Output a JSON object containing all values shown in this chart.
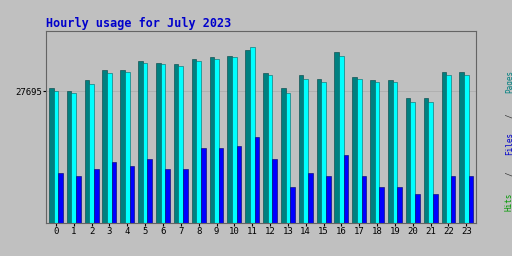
{
  "title": "Hourly usage for July 2023",
  "hours": [
    0,
    1,
    2,
    3,
    4,
    5,
    6,
    7,
    8,
    9,
    10,
    11,
    12,
    13,
    14,
    15,
    16,
    17,
    18,
    19,
    20,
    21,
    22,
    23
  ],
  "pages": [
    0.76,
    0.74,
    0.8,
    0.86,
    0.86,
    0.91,
    0.9,
    0.89,
    0.92,
    0.93,
    0.94,
    0.97,
    0.84,
    0.76,
    0.83,
    0.81,
    0.96,
    0.82,
    0.8,
    0.8,
    0.7,
    0.7,
    0.85,
    0.85
  ],
  "files": [
    0.74,
    0.73,
    0.78,
    0.84,
    0.85,
    0.9,
    0.89,
    0.88,
    0.91,
    0.92,
    0.93,
    0.99,
    0.83,
    0.73,
    0.81,
    0.79,
    0.94,
    0.81,
    0.79,
    0.79,
    0.68,
    0.68,
    0.83,
    0.83
  ],
  "hits": [
    0.28,
    0.26,
    0.3,
    0.34,
    0.32,
    0.36,
    0.3,
    0.3,
    0.42,
    0.42,
    0.43,
    0.48,
    0.36,
    0.2,
    0.28,
    0.26,
    0.38,
    0.26,
    0.2,
    0.2,
    0.16,
    0.16,
    0.26,
    0.26
  ],
  "color_pages": "#008080",
  "color_files": "#00ffff",
  "color_hits": "#0000ff",
  "color_bg": "#c0c0c0",
  "color_plot_bg": "#c0c0c0",
  "color_border": "#646464",
  "title_color": "#0000cc",
  "ytick_label": "27695",
  "bar_width": 0.26,
  "ylim": [
    0,
    1.08
  ],
  "ytick_pos": 0.74,
  "right_label_pages_color": "#008080",
  "right_label_files_color": "#0000cc",
  "right_label_hits_color": "#009900"
}
